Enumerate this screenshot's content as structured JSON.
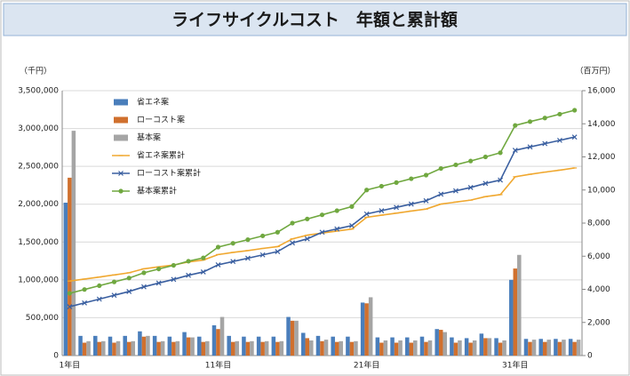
{
  "chart_data": {
    "type": "bar-line",
    "title": "ライフサイクルコスト　年額と累計額",
    "y_label": "（千円）",
    "y2_label": "（百万円）",
    "categories": [
      "1年目",
      null,
      null,
      null,
      null,
      null,
      null,
      null,
      null,
      null,
      "11年目",
      null,
      null,
      null,
      null,
      null,
      null,
      null,
      null,
      null,
      "21年目",
      null,
      null,
      null,
      null,
      null,
      null,
      null,
      null,
      null,
      "31年目",
      null,
      null,
      null,
      null
    ],
    "ylim": [
      0,
      3500000
    ],
    "yticks": [
      0,
      {
        "value": 500000,
        "label": "500,000"
      },
      {
        "value": 1000000,
        "label": "1,000,000"
      },
      {
        "value": 1500000,
        "label": "1,500,000"
      },
      {
        "value": 2000000,
        "label": "2,000,000"
      },
      {
        "value": 2500000,
        "label": "2,500,000"
      },
      {
        "value": 3000000,
        "label": "3,000,000"
      },
      {
        "value": 3500000,
        "label": "3,500,000"
      }
    ],
    "y2lim": [
      0,
      16000
    ],
    "y2ticks": [
      0,
      {
        "value": 2000,
        "label": "2,000"
      },
      {
        "value": 4000,
        "label": "4,000"
      },
      {
        "value": 6000,
        "label": "6,000"
      },
      {
        "value": 8000,
        "label": "8,000"
      },
      {
        "value": 10000,
        "label": "10,000"
      },
      {
        "value": 12000,
        "label": "12,000"
      },
      {
        "value": 14000,
        "label": "14,000"
      },
      {
        "value": 16000,
        "label": "16,000"
      }
    ],
    "grid": true,
    "series": [
      {
        "name": "省エネ案",
        "type": "bar",
        "color": "#4a7ebb",
        "values": [
          2020000,
          260000,
          260000,
          250000,
          260000,
          320000,
          260000,
          250000,
          310000,
          250000,
          400000,
          260000,
          250000,
          250000,
          250000,
          510000,
          300000,
          260000,
          250000,
          250000,
          700000,
          240000,
          240000,
          240000,
          250000,
          350000,
          240000,
          230000,
          290000,
          230000,
          1000000,
          220000,
          220000,
          220000,
          220000
        ]
      },
      {
        "name": "ローコスト案",
        "type": "bar",
        "color": "#d0702e",
        "values": [
          2350000,
          170000,
          180000,
          170000,
          180000,
          250000,
          180000,
          180000,
          240000,
          180000,
          350000,
          180000,
          180000,
          180000,
          180000,
          460000,
          230000,
          190000,
          180000,
          180000,
          690000,
          170000,
          170000,
          170000,
          180000,
          340000,
          170000,
          170000,
          230000,
          170000,
          1150000,
          180000,
          180000,
          180000,
          180000
        ]
      },
      {
        "name": "基本案",
        "type": "bar",
        "color": "#a5a5a5",
        "values": [
          2970000,
          190000,
          190000,
          190000,
          190000,
          260000,
          190000,
          190000,
          240000,
          190000,
          510000,
          190000,
          190000,
          190000,
          190000,
          460000,
          200000,
          210000,
          190000,
          190000,
          770000,
          200000,
          200000,
          200000,
          200000,
          310000,
          200000,
          200000,
          230000,
          200000,
          1330000,
          210000,
          210000,
          210000,
          210000
        ]
      },
      {
        "name": "省エネ案累計",
        "type": "line",
        "axis": "y2",
        "marker": "dash",
        "color": "#f0a830",
        "values": [
          4500,
          4620,
          4740,
          4870,
          5000,
          5240,
          5360,
          5470,
          5650,
          5770,
          6100,
          6230,
          6340,
          6470,
          6580,
          7050,
          7270,
          7400,
          7520,
          7640,
          8350,
          8480,
          8600,
          8730,
          8850,
          9150,
          9270,
          9390,
          9600,
          9720,
          10800,
          10950,
          11080,
          11200,
          11330
        ]
      },
      {
        "name": "ローコスト案累計",
        "type": "line",
        "axis": "y2",
        "marker": "x",
        "color": "#3a5fa0",
        "values": [
          2950,
          3180,
          3410,
          3640,
          3870,
          4150,
          4380,
          4600,
          4850,
          5050,
          5480,
          5680,
          5880,
          6080,
          6280,
          6800,
          7050,
          7450,
          7650,
          7850,
          8550,
          8750,
          8950,
          9150,
          9350,
          9750,
          9950,
          10150,
          10400,
          10600,
          12400,
          12600,
          12800,
          13000,
          13200
        ]
      },
      {
        "name": "基本案累計",
        "type": "line",
        "axis": "y2",
        "marker": "circle",
        "color": "#70a840",
        "values": [
          3760,
          3990,
          4220,
          4450,
          4680,
          5000,
          5230,
          5450,
          5700,
          5900,
          6550,
          6780,
          7000,
          7230,
          7450,
          8000,
          8250,
          8500,
          8750,
          9000,
          10000,
          10230,
          10450,
          10680,
          10900,
          11300,
          11520,
          11750,
          12000,
          12250,
          13900,
          14130,
          14350,
          14580,
          14820
        ]
      }
    ]
  }
}
